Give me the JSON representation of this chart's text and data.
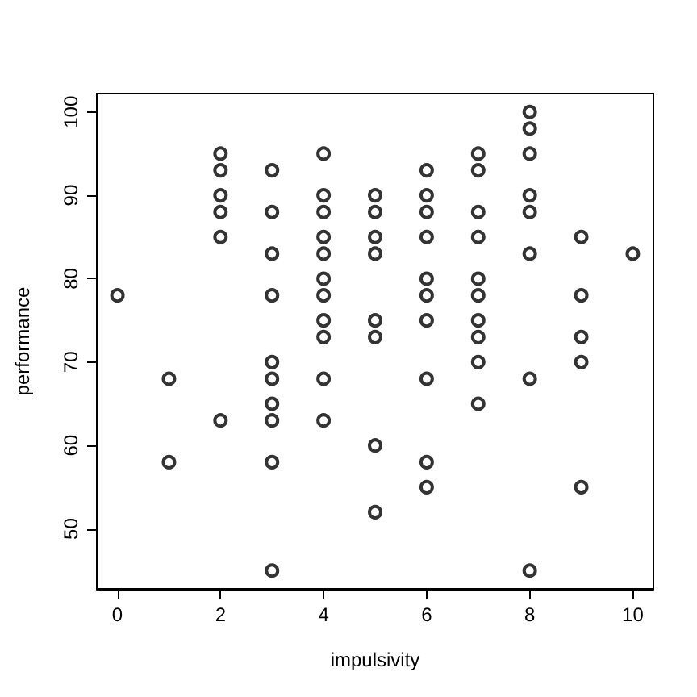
{
  "chart_data": {
    "type": "scatter",
    "xlabel": "impulsivity",
    "ylabel": "performance",
    "x": [
      0,
      1,
      1,
      2,
      2,
      2,
      2,
      2,
      2,
      3,
      3,
      3,
      3,
      3,
      3,
      3,
      3,
      3,
      3,
      4,
      4,
      4,
      4,
      4,
      4,
      4,
      4,
      4,
      4,
      4,
      5,
      5,
      5,
      5,
      5,
      5,
      5,
      5,
      6,
      6,
      6,
      6,
      6,
      6,
      6,
      6,
      6,
      6,
      7,
      7,
      7,
      7,
      7,
      7,
      7,
      7,
      7,
      7,
      8,
      8,
      8,
      8,
      8,
      8,
      8,
      8,
      9,
      9,
      9,
      9,
      9,
      10
    ],
    "series": [
      {
        "color": "#000000",
        "values": [
          78,
          68,
          58,
          95,
          93,
          90,
          88,
          85,
          63,
          93,
          88,
          83,
          78,
          70,
          68,
          65,
          63,
          58,
          45,
          95,
          90,
          88,
          85,
          83,
          80,
          78,
          75,
          73,
          68,
          63,
          90,
          88,
          85,
          83,
          75,
          73,
          60,
          52,
          93,
          90,
          88,
          85,
          80,
          78,
          75,
          68,
          58,
          55,
          95,
          93,
          88,
          85,
          80,
          78,
          75,
          73,
          70,
          65,
          100,
          98,
          95,
          90,
          88,
          83,
          68,
          45,
          85,
          78,
          73,
          70,
          55,
          83
        ]
      }
    ],
    "xlim": [
      -0.4,
      10.4
    ],
    "ylim": [
      42.8,
      102.2
    ],
    "xticks": [
      0,
      2,
      4,
      6,
      8,
      10
    ],
    "yticks": [
      50,
      60,
      70,
      80,
      90,
      100
    ],
    "marker": "circle"
  }
}
